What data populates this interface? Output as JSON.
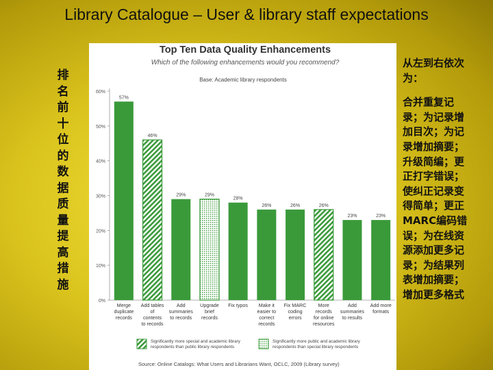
{
  "slide": {
    "title": "Library Catalogue – User & library staff expectations",
    "left_caption": "排名前十位的数据质量提高措施",
    "right_intro": "从左到右依次为：",
    "right_body": "合并重复记录；为记录增加目次；为记录增加摘要；升级简编；更正打字错误；使纠正记录变得简单；更正MARC编码错误；为在线资源添加更多记录；为结果列表增加摘要；增加更多格式"
  },
  "colors": {
    "bar_green": "#3a9a3a",
    "title_dark": "#333333",
    "background_yellow": "#e6d12a"
  },
  "chart_data": {
    "type": "bar",
    "title": "Top Ten Data Quality Enhancements",
    "subtitle": "Which of the following enhancements would you recommend?",
    "base_note": "Base: Academic library respondents",
    "ylim": [
      0,
      60
    ],
    "yticks": [
      "0%",
      "10%",
      "20%",
      "30%",
      "40%",
      "50%",
      "60%"
    ],
    "categories": [
      "Merge duplicate records",
      "Add tables of contents to records",
      "Add summaries to records",
      "Upgrade brief records",
      "Fix typos",
      "Make it easier to correct records",
      "Fix MARC coding errors",
      "More records for online resources",
      "Add summaries to results",
      "Add more formats"
    ],
    "values": [
      57,
      46,
      29,
      29,
      28,
      26,
      26,
      26,
      23,
      23
    ],
    "value_labels": [
      "57%",
      "46%",
      "29%",
      "29%",
      "28%",
      "26%",
      "26%",
      "26%",
      "23%",
      "23%"
    ],
    "patterns": [
      "solid",
      "hatched",
      "solid",
      "dotted",
      "solid",
      "solid",
      "solid",
      "hatched",
      "solid",
      "solid"
    ],
    "legend": [
      {
        "pattern": "hatched",
        "text": "Significantly more special and academic library respondents than public library respondents"
      },
      {
        "pattern": "dotted",
        "text": "Significantly more public and academic library respondents than special library respondents"
      }
    ],
    "source": "Source: Online Catalogs: What Users and Librarians Want, OCLC, 2009 (Library survey)"
  }
}
